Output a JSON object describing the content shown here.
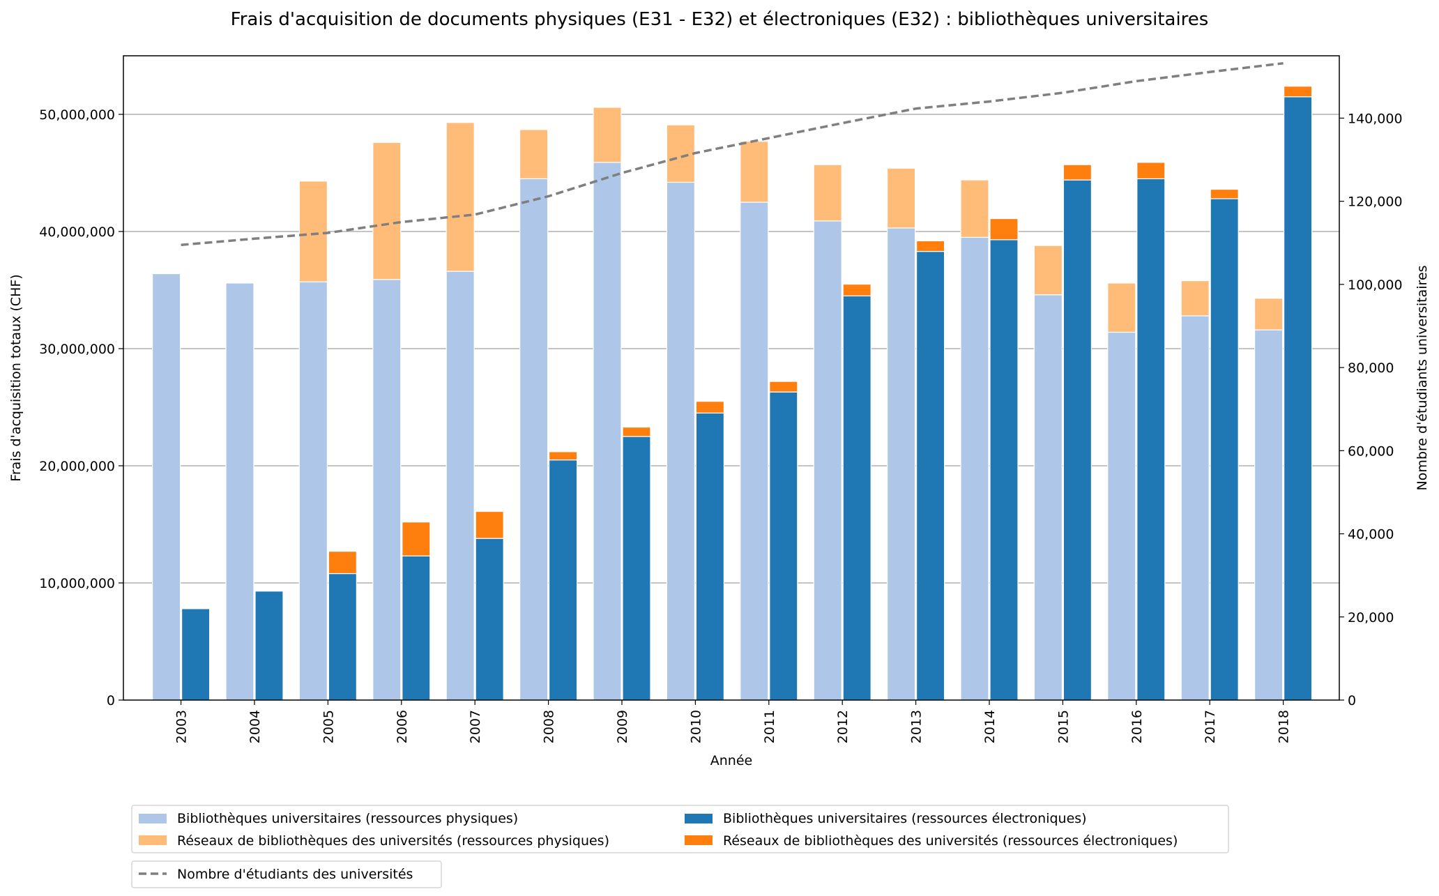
{
  "chart_data": {
    "type": "bar",
    "title": "Frais d'acquisition de documents physiques (E31 - E32) et électroniques (E32) : bibliothèques universitaires",
    "xlabel": "Année",
    "ylabel": "Frais d'acquisition totaux (CHF)",
    "y2label": "Nombre d'étudiants universitaires",
    "ylim": [
      0,
      55000000
    ],
    "y2lim": [
      0,
      155000
    ],
    "yticks": [
      "0",
      "10,000,000",
      "20,000,000",
      "30,000,000",
      "40,000,000",
      "50,000,000"
    ],
    "y2ticks": [
      "0",
      "20,000",
      "40,000",
      "60,000",
      "80,000",
      "100,000",
      "120,000",
      "140,000"
    ],
    "grid": true,
    "legend_position": "bottom",
    "categories": [
      "2003",
      "2004",
      "2005",
      "2006",
      "2007",
      "2008",
      "2009",
      "2010",
      "2011",
      "2012",
      "2013",
      "2014",
      "2015",
      "2016",
      "2017",
      "2018"
    ],
    "series": [
      {
        "name": "Bibliothèques universitaires (ressources physiques)",
        "color": "#aec7e8",
        "bar": "physical",
        "values": [
          36400000,
          35600000,
          35700000,
          35900000,
          36600000,
          44500000,
          45900000,
          44200000,
          42500000,
          40900000,
          40300000,
          39500000,
          34600000,
          31400000,
          32800000,
          31600000
        ]
      },
      {
        "name": "Réseaux de bibliothèques des universités (ressources physiques)",
        "color": "#ffbb78",
        "bar": "physical",
        "values": [
          0,
          0,
          8600000,
          11700000,
          12700000,
          4200000,
          4700000,
          4900000,
          5200000,
          4800000,
          5100000,
          4900000,
          4200000,
          4200000,
          3000000,
          2700000
        ]
      },
      {
        "name": "Bibliothèques universitaires (ressources électroniques)",
        "color": "#1f77b4",
        "bar": "electronic",
        "values": [
          7800000,
          9300000,
          10800000,
          12300000,
          13800000,
          20500000,
          22500000,
          24500000,
          26300000,
          34500000,
          38300000,
          39300000,
          44400000,
          44500000,
          42800000,
          51500000
        ]
      },
      {
        "name": "Réseaux de bibliothèques des universités (ressources électroniques)",
        "color": "#ff7f0e",
        "bar": "electronic",
        "values": [
          0,
          0,
          1900000,
          2900000,
          2300000,
          700000,
          800000,
          1000000,
          900000,
          1000000,
          900000,
          1800000,
          1300000,
          1400000,
          800000,
          900000
        ]
      }
    ],
    "line": {
      "name": "Nombre d'étudiants des universités",
      "color": "#7f7f7f",
      "axis": "right",
      "values": [
        109500,
        111000,
        112400,
        115000,
        116800,
        121200,
        126800,
        131600,
        135200,
        138800,
        142300,
        144000,
        146100,
        148900,
        151100,
        153200
      ]
    }
  }
}
